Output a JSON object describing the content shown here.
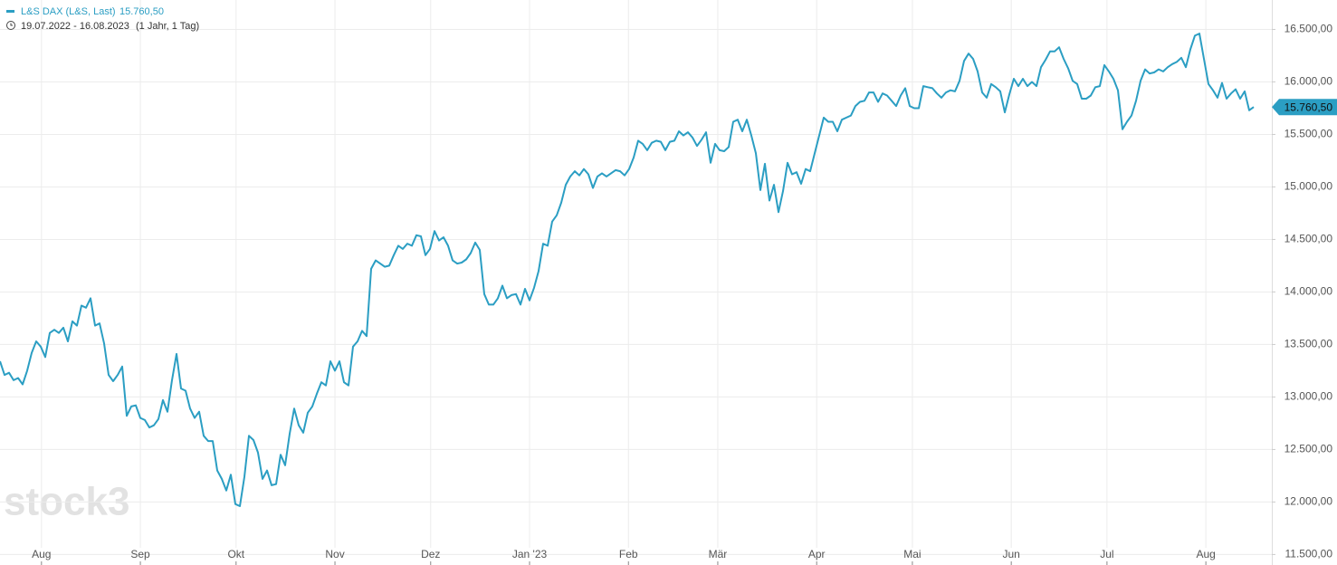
{
  "chart_data": {
    "type": "line",
    "series": [
      {
        "name": "L&S DAX (L&S, Last)",
        "color": "#2b9ec3",
        "values": [
          13340,
          13210,
          13230,
          13160,
          13180,
          13120,
          13250,
          13420,
          13530,
          13480,
          13380,
          13610,
          13640,
          13610,
          13660,
          13530,
          13720,
          13680,
          13870,
          13850,
          13940,
          13680,
          13700,
          13510,
          13210,
          13150,
          13210,
          13290,
          12820,
          12910,
          12920,
          12800,
          12780,
          12710,
          12730,
          12790,
          12970,
          12860,
          13160,
          13410,
          13080,
          13060,
          12890,
          12800,
          12860,
          12630,
          12580,
          12580,
          12300,
          12220,
          12110,
          12260,
          11980,
          11960,
          12240,
          12630,
          12590,
          12470,
          12220,
          12300,
          12160,
          12170,
          12450,
          12350,
          12650,
          12890,
          12730,
          12660,
          12850,
          12910,
          13030,
          13140,
          13110,
          13340,
          13250,
          13340,
          13140,
          13110,
          13480,
          13530,
          13630,
          13580,
          14220,
          14300,
          14270,
          14240,
          14250,
          14350,
          14440,
          14410,
          14460,
          14440,
          14540,
          14530,
          14350,
          14410,
          14580,
          14490,
          14520,
          14440,
          14300,
          14270,
          14280,
          14310,
          14370,
          14470,
          14400,
          13980,
          13880,
          13880,
          13940,
          14060,
          13940,
          13970,
          13980,
          13880,
          14030,
          13920,
          14040,
          14200,
          14460,
          14440,
          14670,
          14730,
          14850,
          15020,
          15100,
          15150,
          15110,
          15170,
          15120,
          14990,
          15100,
          15130,
          15100,
          15130,
          15160,
          15150,
          15110,
          15170,
          15280,
          15440,
          15410,
          15350,
          15420,
          15440,
          15430,
          15350,
          15430,
          15440,
          15530,
          15490,
          15520,
          15470,
          15390,
          15450,
          15520,
          15230,
          15410,
          15350,
          15340,
          15380,
          15620,
          15640,
          15530,
          15640,
          15490,
          15320,
          14970,
          15220,
          14870,
          15020,
          14760,
          14960,
          15230,
          15120,
          15140,
          15030,
          15170,
          15150,
          15320,
          15490,
          15660,
          15620,
          15620,
          15530,
          15640,
          15660,
          15680,
          15770,
          15810,
          15820,
          15900,
          15900,
          15810,
          15890,
          15870,
          15820,
          15770,
          15870,
          15940,
          15770,
          15750,
          15750,
          15960,
          15950,
          15940,
          15890,
          15850,
          15900,
          15920,
          15910,
          16010,
          16200,
          16270,
          16220,
          16100,
          15900,
          15850,
          15980,
          15950,
          15910,
          15710,
          15880,
          16030,
          15960,
          16030,
          15960,
          16000,
          15960,
          16140,
          16210,
          16290,
          16290,
          16330,
          16220,
          16130,
          16010,
          15980,
          15840,
          15840,
          15870,
          15950,
          15960,
          16160,
          16100,
          16030,
          15920,
          15550,
          15620,
          15680,
          15820,
          16010,
          16120,
          16080,
          16090,
          16120,
          16100,
          16140,
          16170,
          16190,
          16230,
          16140,
          16310,
          16440,
          16460,
          16220,
          15980,
          15920,
          15850,
          15990,
          15840,
          15890,
          15930,
          15840,
          15910,
          15730,
          15760.5
        ]
      }
    ],
    "current": {
      "value": 15760.5,
      "label": "15.760,50"
    },
    "date_range": "19.07.2022 - 16.08.2023",
    "period": "(1 Jahr, 1 Tag)",
    "watermark": "stock3",
    "xlim": [
      "2022-07-19",
      "2023-08-16"
    ],
    "xticks": [
      {
        "value": "2022-08",
        "label": "Aug"
      },
      {
        "value": "2022-09",
        "label": "Sep"
      },
      {
        "value": "2022-10",
        "label": "Okt"
      },
      {
        "value": "2022-11",
        "label": "Nov"
      },
      {
        "value": "2022-12",
        "label": "Dez"
      },
      {
        "value": "2023-01",
        "label": "Jan '23"
      },
      {
        "value": "2023-02",
        "label": "Feb"
      },
      {
        "value": "2023-03",
        "label": "Mär"
      },
      {
        "value": "2023-04",
        "label": "Apr"
      },
      {
        "value": "2023-05",
        "label": "Mai"
      },
      {
        "value": "2023-06",
        "label": "Jun"
      },
      {
        "value": "2023-07",
        "label": "Jul"
      },
      {
        "value": "2023-08",
        "label": "Aug"
      }
    ],
    "ylim": [
      11400,
      16780
    ],
    "yticks": [
      {
        "value": 11500,
        "label": "11.500,00"
      },
      {
        "value": 12000,
        "label": "12.000,00"
      },
      {
        "value": 12500,
        "label": "12.500,00"
      },
      {
        "value": 13000,
        "label": "13.000,00"
      },
      {
        "value": 13500,
        "label": "13.500,00"
      },
      {
        "value": 14000,
        "label": "14.000,00"
      },
      {
        "value": 14500,
        "label": "14.500,00"
      },
      {
        "value": 15000,
        "label": "15.000,00"
      },
      {
        "value": 15500,
        "label": "15.500,00"
      },
      {
        "value": 16000,
        "label": "16.000,00"
      },
      {
        "value": 16500,
        "label": "16.500,00"
      }
    ],
    "grid": true
  }
}
